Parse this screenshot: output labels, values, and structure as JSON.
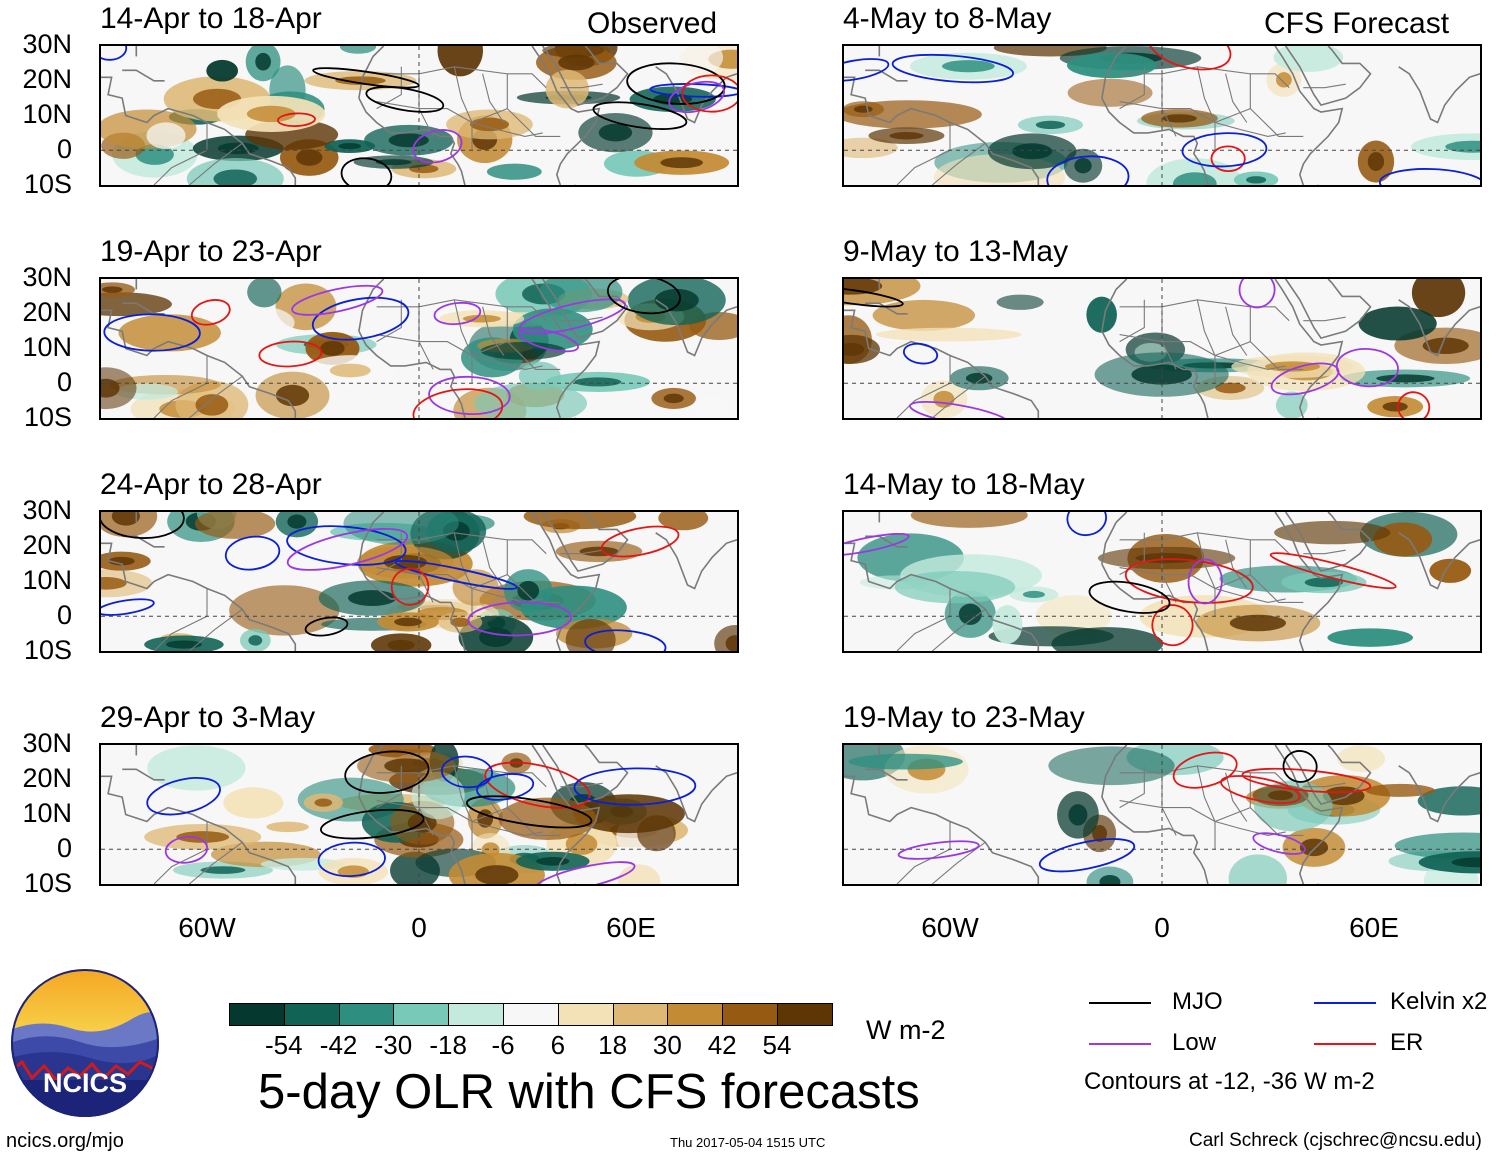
{
  "chart_data": {
    "type": "heatmap",
    "title": "5-day OLR with CFS forecasts",
    "units": "W m-2",
    "columns": [
      "Observed",
      "CFS Forecast"
    ],
    "observed_panels": [
      "14-Apr to 18-Apr",
      "19-Apr to 23-Apr",
      "24-Apr to 28-Apr",
      "29-Apr to 3-May"
    ],
    "forecast_panels": [
      "4-May to 8-May",
      "9-May to 13-May",
      "14-May to 18-May",
      "19-May to 23-May"
    ],
    "lat_ticks": [
      "30N",
      "20N",
      "10N",
      "0",
      "10S"
    ],
    "lon_ticks": [
      "60W",
      "0",
      "60E"
    ],
    "colorbar": {
      "labels": [
        "-54",
        "-42",
        "-30",
        "-18",
        "-6",
        "6",
        "18",
        "30",
        "42",
        "54"
      ],
      "colors": [
        "#05392f",
        "#116356",
        "#2e8f80",
        "#79c9b8",
        "#c3eadd",
        "#f7f7f7",
        "#f3e2b8",
        "#deb874",
        "#c38b34",
        "#975a12",
        "#5e3606"
      ]
    },
    "legend": [
      {
        "label": "MJO",
        "color": "#000000"
      },
      {
        "label": "Kelvin x2",
        "color": "#0a1fd6"
      },
      {
        "label": "Low",
        "color": "#9b38e3"
      },
      {
        "label": "ER",
        "color": "#e31616"
      }
    ],
    "contour_note": "Contours at -12, -36 W m-2"
  },
  "footer": {
    "logo_text": "NCICS",
    "site": "ncics.org/mjo",
    "timestamp": "Thu 2017-05-04 1515 UTC",
    "author": "Carl Schreck (cjschrec@ncsu.edu)"
  }
}
